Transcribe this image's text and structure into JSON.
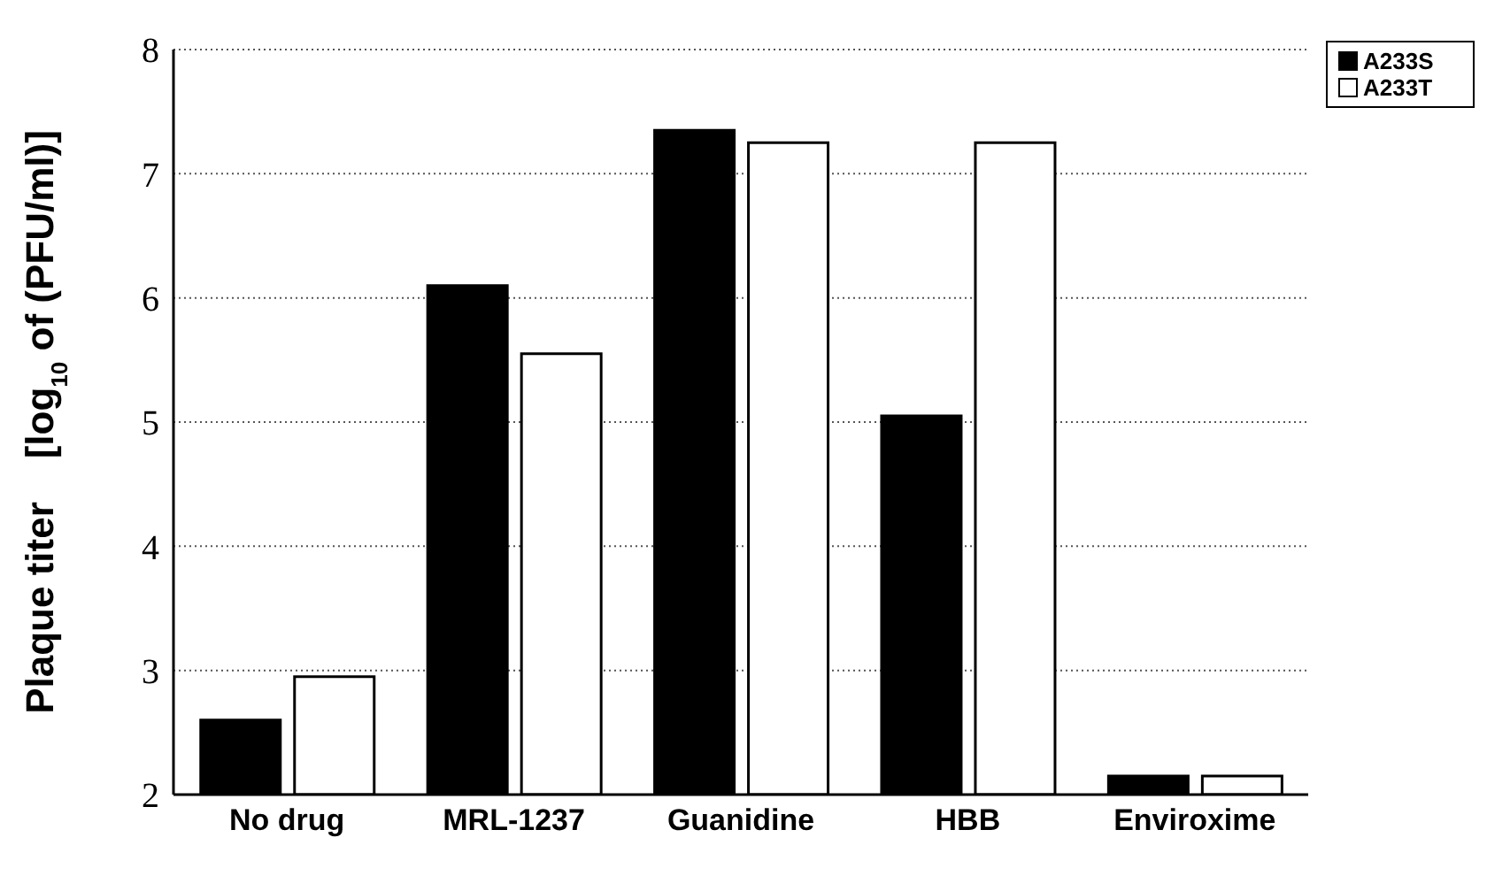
{
  "chart_data": {
    "type": "bar",
    "ylabel": "Plaque titer    [log$_{10}$ of (PFU/ml)]",
    "categories": [
      "No drug",
      "MRL-1237",
      "Guanidine",
      "HBB",
      "Enviroxime"
    ],
    "series": [
      {
        "name": "A233S",
        "color": "#000000",
        "values": [
          2.6,
          6.1,
          7.35,
          5.05,
          2.15
        ]
      },
      {
        "name": "A233T",
        "color": "#ffffff",
        "values": [
          2.95,
          5.55,
          7.25,
          7.25,
          2.15
        ]
      }
    ],
    "ylim": [
      2,
      8
    ],
    "yticks": [
      2,
      3,
      4,
      5,
      6,
      7,
      8
    ],
    "grid": "y",
    "legend": "top right"
  }
}
